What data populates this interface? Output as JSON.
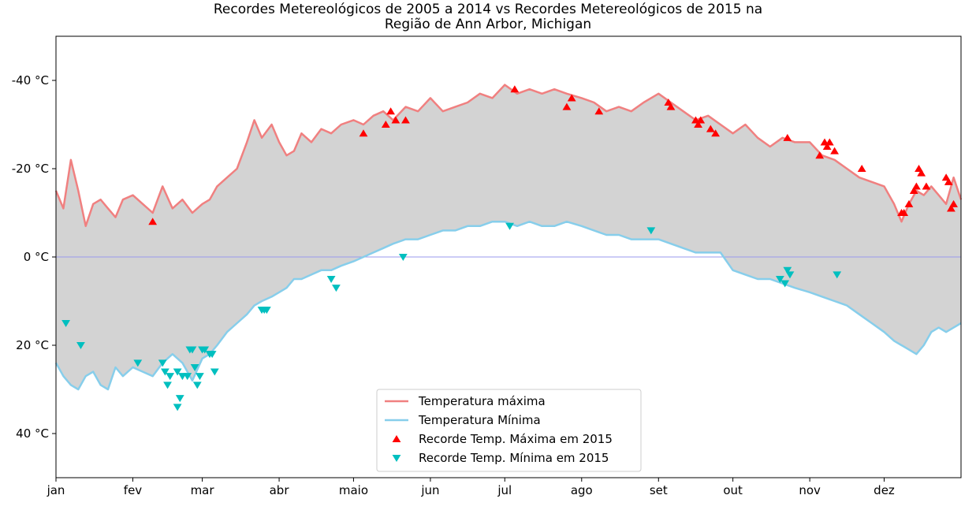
{
  "chart_data": {
    "type": "line",
    "title_line1": "Recordes Metereológicos de 2005 a 2014 vs Recordes Metereológicos de 2015 na",
    "title_line2": "Região de Ann Arbor, Michigan",
    "xlabel": "",
    "ylabel": "",
    "y_inverted": true,
    "ylim": [
      -50,
      50
    ],
    "xlim": [
      1,
      366
    ],
    "grid": false,
    "x_ticks": [
      {
        "day": 1,
        "label": "jan"
      },
      {
        "day": 32,
        "label": "fev"
      },
      {
        "day": 60,
        "label": "mar"
      },
      {
        "day": 91,
        "label": "abr"
      },
      {
        "day": 121,
        "label": "maio"
      },
      {
        "day": 152,
        "label": "jun"
      },
      {
        "day": 182,
        "label": "jul"
      },
      {
        "day": 213,
        "label": "ago"
      },
      {
        "day": 244,
        "label": "set"
      },
      {
        "day": 274,
        "label": "out"
      },
      {
        "day": 305,
        "label": "nov"
      },
      {
        "day": 335,
        "label": "dez"
      }
    ],
    "y_ticks": [
      {
        "value": -40,
        "label": "-40 °C"
      },
      {
        "value": -20,
        "label": "-20 °C"
      },
      {
        "value": 0,
        "label": "0 °C"
      },
      {
        "value": 20,
        "label": "20 °C"
      },
      {
        "value": 40,
        "label": "40 °C"
      }
    ],
    "fill_between_color": "#d3d3d3",
    "zero_line_color": "#9999ee",
    "series": [
      {
        "name": "Temperatura máxima",
        "color": "#f08080",
        "x": [
          1,
          4,
          7,
          10,
          13,
          16,
          19,
          22,
          25,
          28,
          32,
          36,
          40,
          44,
          48,
          52,
          56,
          60,
          63,
          66,
          70,
          74,
          78,
          81,
          84,
          88,
          91,
          94,
          97,
          100,
          104,
          108,
          112,
          116,
          121,
          125,
          129,
          133,
          137,
          142,
          147,
          152,
          157,
          162,
          167,
          172,
          177,
          182,
          187,
          192,
          197,
          202,
          207,
          213,
          218,
          223,
          228,
          233,
          238,
          244,
          249,
          254,
          259,
          264,
          269,
          274,
          279,
          284,
          289,
          294,
          299,
          305,
          310,
          315,
          320,
          325,
          330,
          335,
          339,
          342,
          345,
          348,
          351,
          354,
          357,
          360,
          363,
          366
        ],
        "values": [
          -15,
          -11,
          -22,
          -15,
          -7,
          -12,
          -13,
          -11,
          -9,
          -13,
          -14,
          -12,
          -10,
          -16,
          -11,
          -13,
          -10,
          -12,
          -13,
          -16,
          -18,
          -20,
          -26,
          -31,
          -27,
          -30,
          -26,
          -23,
          -24,
          -28,
          -26,
          -29,
          -28,
          -30,
          -31,
          -30,
          -32,
          -33,
          -31,
          -34,
          -33,
          -36,
          -33,
          -34,
          -35,
          -37,
          -36,
          -39,
          -37,
          -38,
          -37,
          -38,
          -37,
          -36,
          -35,
          -33,
          -34,
          -33,
          -35,
          -37,
          -35,
          -33,
          -31,
          -32,
          -30,
          -28,
          -30,
          -27,
          -25,
          -27,
          -26,
          -26,
          -23,
          -22,
          -20,
          -18,
          -17,
          -16,
          -12,
          -8,
          -12,
          -15,
          -14,
          -16,
          -14,
          -12,
          -18,
          -13
        ]
      },
      {
        "name": "Temperatura Mínima",
        "color": "#87ceeb",
        "x": [
          1,
          4,
          7,
          10,
          13,
          16,
          19,
          22,
          25,
          28,
          32,
          36,
          40,
          44,
          48,
          52,
          56,
          60,
          63,
          66,
          70,
          74,
          78,
          81,
          84,
          88,
          91,
          94,
          97,
          100,
          104,
          108,
          112,
          116,
          121,
          125,
          129,
          133,
          137,
          142,
          147,
          152,
          157,
          162,
          167,
          172,
          177,
          182,
          187,
          192,
          197,
          202,
          207,
          213,
          218,
          223,
          228,
          233,
          238,
          244,
          249,
          254,
          259,
          264,
          269,
          274,
          279,
          284,
          289,
          294,
          299,
          305,
          310,
          315,
          320,
          325,
          330,
          335,
          339,
          342,
          345,
          348,
          351,
          354,
          357,
          360,
          363,
          366
        ],
        "values": [
          24,
          27,
          29,
          30,
          27,
          26,
          29,
          30,
          25,
          27,
          25,
          26,
          27,
          24,
          22,
          24,
          28,
          23,
          22,
          20,
          17,
          15,
          13,
          11,
          10,
          9,
          8,
          7,
          5,
          5,
          4,
          3,
          3,
          2,
          1,
          0,
          -1,
          -2,
          -3,
          -4,
          -4,
          -5,
          -6,
          -6,
          -7,
          -7,
          -8,
          -8,
          -7,
          -8,
          -7,
          -7,
          -8,
          -7,
          -6,
          -5,
          -5,
          -4,
          -4,
          -4,
          -3,
          -2,
          -1,
          -1,
          -1,
          3,
          4,
          5,
          5,
          6,
          7,
          8,
          9,
          10,
          11,
          13,
          15,
          17,
          19,
          20,
          21,
          22,
          20,
          17,
          16,
          17,
          16,
          15
        ]
      },
      {
        "name": "Recorde Temp. Máxima em 2015",
        "color": "#ff0000",
        "marker": "triangle-up",
        "x": [
          40,
          125,
          134,
          136,
          138,
          142,
          186,
          207,
          209,
          220,
          248,
          249,
          259,
          260,
          261,
          265,
          267,
          296,
          309,
          311,
          312,
          313,
          315,
          326,
          342,
          343,
          345,
          347,
          348,
          349,
          350,
          352,
          360,
          361,
          362,
          363
        ],
        "values": [
          -8,
          -28,
          -30,
          -33,
          -31,
          -31,
          -38,
          -34,
          -36,
          -33,
          -35,
          -34,
          -31,
          -30,
          -31,
          -29,
          -28,
          -27,
          -23,
          -26,
          -25,
          -26,
          -24,
          -20,
          -10,
          -10,
          -12,
          -15,
          -16,
          -20,
          -19,
          -16,
          -18,
          -17,
          -11,
          -12
        ]
      },
      {
        "name": "Recorde Temp. Mínima em 2015",
        "color": "#00bfbf",
        "marker": "triangle-down",
        "x": [
          5,
          11,
          34,
          44,
          45,
          46,
          47,
          50,
          50,
          51,
          52,
          54,
          55,
          56,
          57,
          58,
          59,
          60,
          61,
          63,
          64,
          65,
          84,
          85,
          86,
          112,
          114,
          141,
          184,
          241,
          293,
          295,
          296,
          297,
          316
        ],
        "values": [
          15,
          20,
          24,
          24,
          26,
          29,
          27,
          26,
          34,
          32,
          27,
          27,
          21,
          21,
          25,
          29,
          27,
          21,
          21,
          22,
          22,
          26,
          12,
          12,
          12,
          5,
          7,
          0,
          -7,
          -6,
          5,
          6,
          3,
          4,
          4
        ]
      }
    ],
    "legend": {
      "position": "lower center",
      "entries": [
        {
          "label": "Temperatura máxima",
          "kind": "line",
          "color": "#f08080"
        },
        {
          "label": "Temperatura Mínima",
          "kind": "line",
          "color": "#87ceeb"
        },
        {
          "label": "Recorde Temp. Máxima em 2015",
          "kind": "triangle-up",
          "color": "#ff0000"
        },
        {
          "label": "Recorde Temp. Mínima em 2015",
          "kind": "triangle-down",
          "color": "#00bfbf"
        }
      ]
    }
  }
}
